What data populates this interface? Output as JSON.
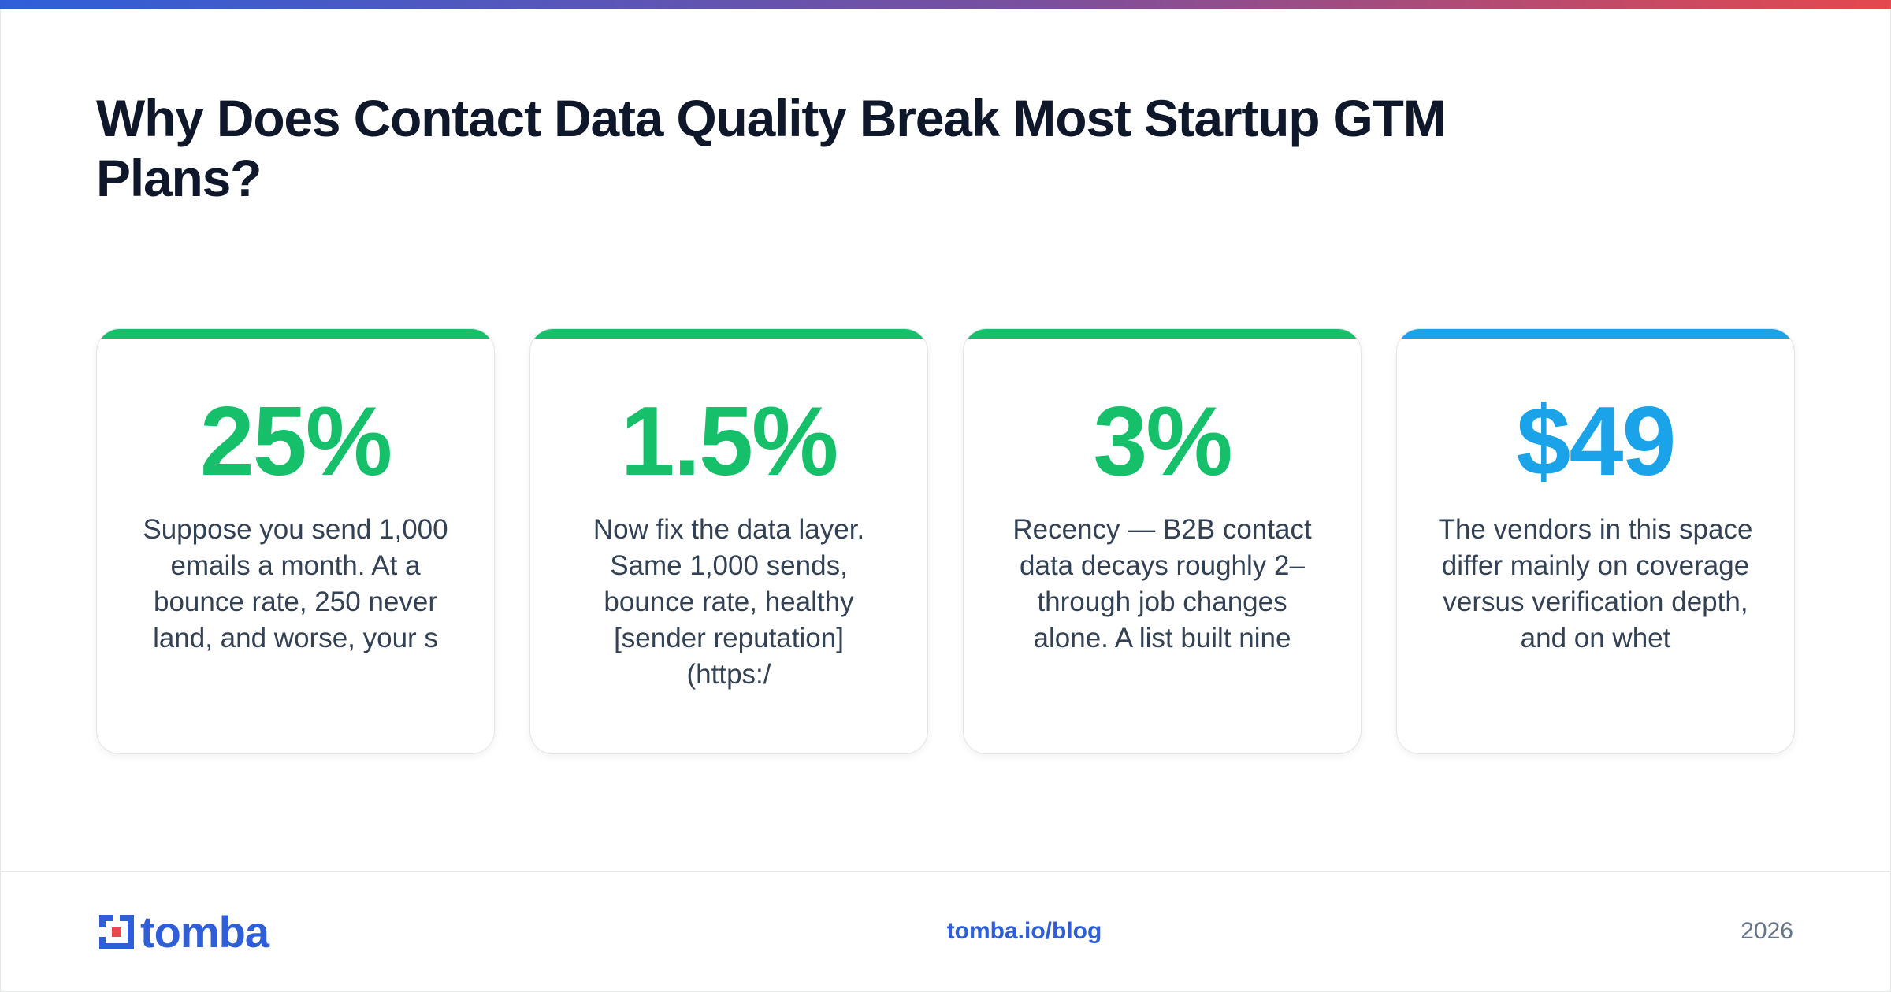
{
  "header": {
    "title": "Why Does Contact Data Quality Break Most Startup GTM Plans?"
  },
  "cards": [
    {
      "stat": "25%",
      "description": "Suppose you send 1,000 emails a month. At a bounce rate, 250 never land, and worse, your s",
      "accent_color": "#16c06a",
      "stat_color": "#16c06a"
    },
    {
      "stat": "1.5%",
      "description": "Now fix the data layer. Same 1,000 sends, bounce rate, healthy [sender reputation] (https:/",
      "accent_color": "#16c06a",
      "stat_color": "#16c06a"
    },
    {
      "stat": "3%",
      "description": "Recency — B2B contact data decays roughly 2– through job changes alone. A list built nine",
      "accent_color": "#16c06a",
      "stat_color": "#16c06a"
    },
    {
      "stat": "$49",
      "description": "The vendors in this space differ mainly on coverage versus verification depth, and on whet",
      "accent_color": "#1aa3e8",
      "stat_color": "#1aa3e8"
    }
  ],
  "footer": {
    "logo_text": "tomba",
    "logo_icon": "tomba-logo-icon",
    "url": "tomba.io/blog",
    "year": "2026"
  },
  "colors": {
    "brand_blue": "#2f5fd8",
    "brand_red": "#e5484d",
    "title": "#0f172a",
    "body_text": "#334155",
    "muted": "#64748b"
  }
}
